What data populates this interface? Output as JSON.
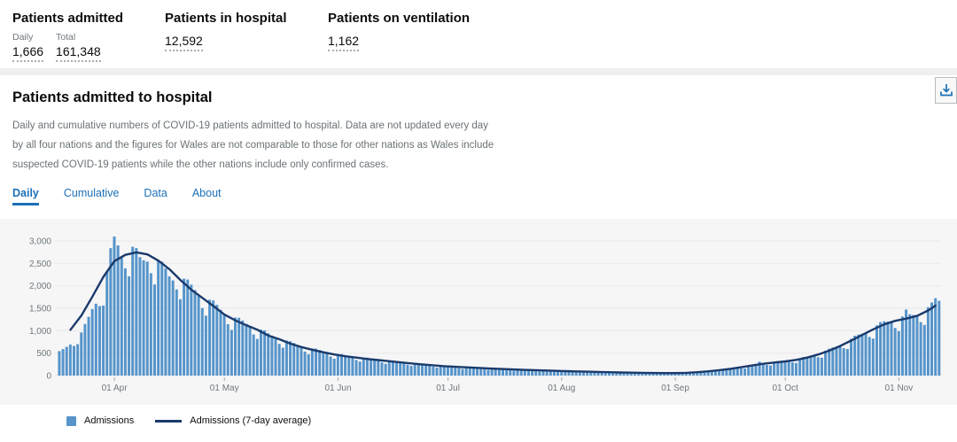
{
  "colors": {
    "accent_blue": "#1d70b8",
    "bar_blue": "#5694ca",
    "line_navy": "#1a3a6b",
    "gridline": "#e8e8e9",
    "axis_text": "#6f777b",
    "tick_mark": "#a5a8aa",
    "plot_bg": "#f6f6f7"
  },
  "stats": {
    "admitted": {
      "title": "Patients admitted",
      "daily_label": "Daily",
      "daily_value": "1,666",
      "total_label": "Total",
      "total_value": "161,348"
    },
    "in_hospital": {
      "title": "Patients in hospital",
      "value": "12,592"
    },
    "ventilation": {
      "title": "Patients on ventilation",
      "value": "1,162"
    }
  },
  "card": {
    "title": "Patients admitted to hospital",
    "description": "Daily and cumulative numbers of COVID-19 patients admitted to hospital. Data are not updated every day by all four nations and the figures for Wales are not comparable to those for other nations as Wales include suspected COVID-19 patients while the other nations include only confirmed cases.",
    "download_icon": "download-icon",
    "tabs": [
      {
        "label": "Daily",
        "active": true
      },
      {
        "label": "Cumulative",
        "active": false
      },
      {
        "label": "Data",
        "active": false
      },
      {
        "label": "About",
        "active": false
      }
    ]
  },
  "chart_data": {
    "type": "bar",
    "title": "Patients admitted to hospital — Daily",
    "start_date": "2020-03-17",
    "end_date": "2020-11-12",
    "ylim": [
      0,
      3000
    ],
    "y_tick_step": 500,
    "y_ticks": [
      "0",
      "500",
      "1,000",
      "1,500",
      "2,000",
      "2,500",
      "3,000"
    ],
    "x_ticks": [
      {
        "label": "01 Apr",
        "index": 15
      },
      {
        "label": "01 May",
        "index": 45
      },
      {
        "label": "01 Jun",
        "index": 76
      },
      {
        "label": "01 Jul",
        "index": 106
      },
      {
        "label": "01 Aug",
        "index": 137
      },
      {
        "label": "01 Sep",
        "index": 168
      },
      {
        "label": "01 Oct",
        "index": 198
      },
      {
        "label": "01 Nov",
        "index": 229
      }
    ],
    "grid": true,
    "legend_position": "bottom-left",
    "series": [
      {
        "name": "Admissions",
        "type": "bar",
        "color": "#5694ca",
        "values": [
          545,
          590,
          640,
          690,
          660,
          700,
          960,
          1150,
          1310,
          1480,
          1600,
          1550,
          1560,
          2320,
          2840,
          3099,
          2900,
          2620,
          2390,
          2210,
          2870,
          2840,
          2640,
          2570,
          2540,
          2280,
          2030,
          2570,
          2540,
          2390,
          2210,
          2120,
          1920,
          1700,
          2160,
          2140,
          2025,
          1906,
          1790,
          1505,
          1336,
          1691,
          1674,
          1576,
          1466,
          1360,
          1146,
          1018,
          1292,
          1288,
          1226,
          1154,
          1087,
          916,
          816,
          1026,
          1008,
          943,
          889,
          837,
          705,
          622,
          780,
          767,
          726,
          680,
          635,
          535,
          476,
          604,
          602,
          570,
          536,
          503,
          424,
          376,
          480,
          478,
          456,
          433,
          410,
          348,
          312,
          399,
          400,
          384,
          364,
          345,
          293,
          262,
          336,
          337,
          321,
          304,
          287,
          242,
          216,
          276,
          275,
          263,
          248,
          235,
          198,
          178,
          227,
          227,
          217,
          207,
          196,
          167,
          150,
          192,
          193,
          186,
          176,
          167,
          143,
          128,
          165,
          165,
          159,
          151,
          143,
          122,
          110,
          141,
          141,
          136,
          129,
          122,
          104,
          94,
          120,
          120,
          116,
          109,
          104,
          88,
          79,
          102,
          102,
          98,
          93,
          88,
          75,
          67,
          86,
          86,
          83,
          79,
          75,
          64,
          58,
          74,
          75,
          71,
          68,
          65,
          55,
          50,
          64,
          64,
          61,
          59,
          57,
          49,
          45,
          59,
          60,
          61,
          62,
          62,
          57,
          57,
          79,
          89,
          93,
          98,
          103,
          97,
          96,
          137,
          151,
          159,
          167,
          173,
          161,
          158,
          223,
          243,
          251,
          310,
          262,
          236,
          225,
          305,
          323,
          325,
          325,
          327,
          295,
          280,
          385,
          414,
          424,
          436,
          447,
          409,
          398,
          553,
          599,
          625,
          644,
          660,
          609,
          592,
          819,
          888,
          915,
          932,
          947,
          860,
          824,
          1120,
          1191,
          1208,
          1202,
          1193,
          1061,
          990,
          1316,
          1470,
          1367,
          1349,
          1330,
          1192,
          1128,
          1523,
          1628,
          1724,
          1666
        ]
      },
      {
        "name": "Admissions (7-day average)",
        "type": "line",
        "color": "#1a3a6b",
        "points_i": [
          3,
          6,
          9,
          12,
          15,
          18,
          21,
          24,
          27,
          30,
          33,
          36,
          39,
          42,
          45,
          48,
          51,
          54,
          57,
          60,
          63,
          66,
          69,
          72,
          75,
          78,
          81,
          84,
          87,
          90,
          93,
          96,
          99,
          102,
          105,
          108,
          111,
          114,
          117,
          120,
          123,
          126,
          129,
          132,
          135,
          138,
          141,
          144,
          147,
          150,
          153,
          156,
          159,
          162,
          165,
          168,
          171,
          174,
          177,
          180,
          183,
          186,
          189,
          192,
          195,
          198,
          201,
          204,
          207,
          210,
          213,
          216,
          219,
          222,
          225,
          228,
          231,
          234,
          237,
          239
        ],
        "points_v": [
          1020,
          1340,
          1760,
          2200,
          2550,
          2690,
          2745,
          2700,
          2560,
          2370,
          2130,
          1910,
          1730,
          1550,
          1360,
          1230,
          1120,
          1020,
          890,
          810,
          710,
          635,
          575,
          520,
          470,
          430,
          400,
          370,
          345,
          320,
          295,
          270,
          248,
          228,
          210,
          196,
          183,
          171,
          160,
          150,
          140,
          131,
          122,
          114,
          106,
          99,
          92,
          86,
          80,
          75,
          70,
          66,
          62,
          58,
          56,
          56,
          62,
          75,
          95,
          120,
          150,
          185,
          225,
          262,
          290,
          316,
          350,
          400,
          470,
          555,
          660,
          780,
          905,
          1030,
          1140,
          1220,
          1270,
          1330,
          1450,
          1560
        ]
      }
    ],
    "legend": [
      {
        "label": "Admissions",
        "swatch": "square",
        "color": "#5694ca"
      },
      {
        "label": "Admissions (7-day average)",
        "swatch": "line",
        "color": "#1a3a6b"
      }
    ]
  }
}
